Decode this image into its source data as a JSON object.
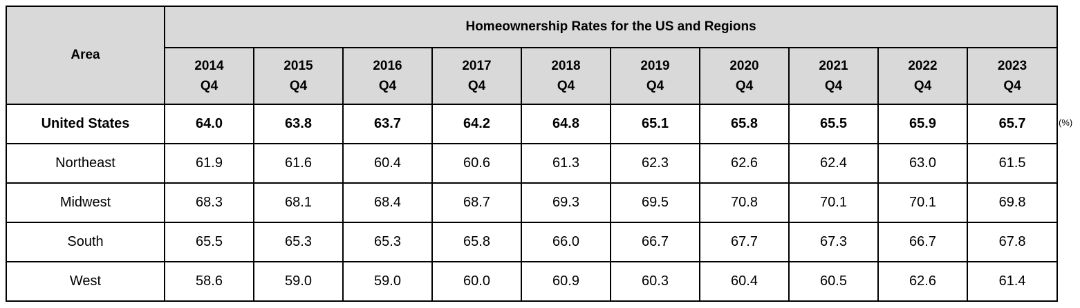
{
  "chart_data": {
    "type": "table",
    "title": "Homeownership Rates for the US and Regions",
    "row_header_label": "Area",
    "unit": "(%)",
    "columns": [
      {
        "year": "2014",
        "quarter": "Q4"
      },
      {
        "year": "2015",
        "quarter": "Q4"
      },
      {
        "year": "2016",
        "quarter": "Q4"
      },
      {
        "year": "2017",
        "quarter": "Q4"
      },
      {
        "year": "2018",
        "quarter": "Q4"
      },
      {
        "year": "2019",
        "quarter": "Q4"
      },
      {
        "year": "2020",
        "quarter": "Q4"
      },
      {
        "year": "2021",
        "quarter": "Q4"
      },
      {
        "year": "2022",
        "quarter": "Q4"
      },
      {
        "year": "2023",
        "quarter": "Q4"
      }
    ],
    "rows": [
      {
        "area": "United States",
        "values": [
          "64.0",
          "63.8",
          "63.7",
          "64.2",
          "64.8",
          "65.1",
          "65.8",
          "65.5",
          "65.9",
          "65.7"
        ]
      },
      {
        "area": "Northeast",
        "values": [
          "61.9",
          "61.6",
          "60.4",
          "60.6",
          "61.3",
          "62.3",
          "62.6",
          "62.4",
          "63.0",
          "61.5"
        ]
      },
      {
        "area": "Midwest",
        "values": [
          "68.3",
          "68.1",
          "68.4",
          "68.7",
          "69.3",
          "69.5",
          "70.8",
          "70.1",
          "70.1",
          "69.8"
        ]
      },
      {
        "area": "South",
        "values": [
          "65.5",
          "65.3",
          "65.3",
          "65.8",
          "66.0",
          "66.7",
          "67.7",
          "67.3",
          "66.7",
          "67.8"
        ]
      },
      {
        "area": "West",
        "values": [
          "58.6",
          "59.0",
          "59.0",
          "60.0",
          "60.9",
          "60.3",
          "60.4",
          "60.5",
          "62.6",
          "61.4"
        ]
      }
    ]
  },
  "colors": {
    "header_bg": "#d9d9d9",
    "border": "#000000"
  }
}
